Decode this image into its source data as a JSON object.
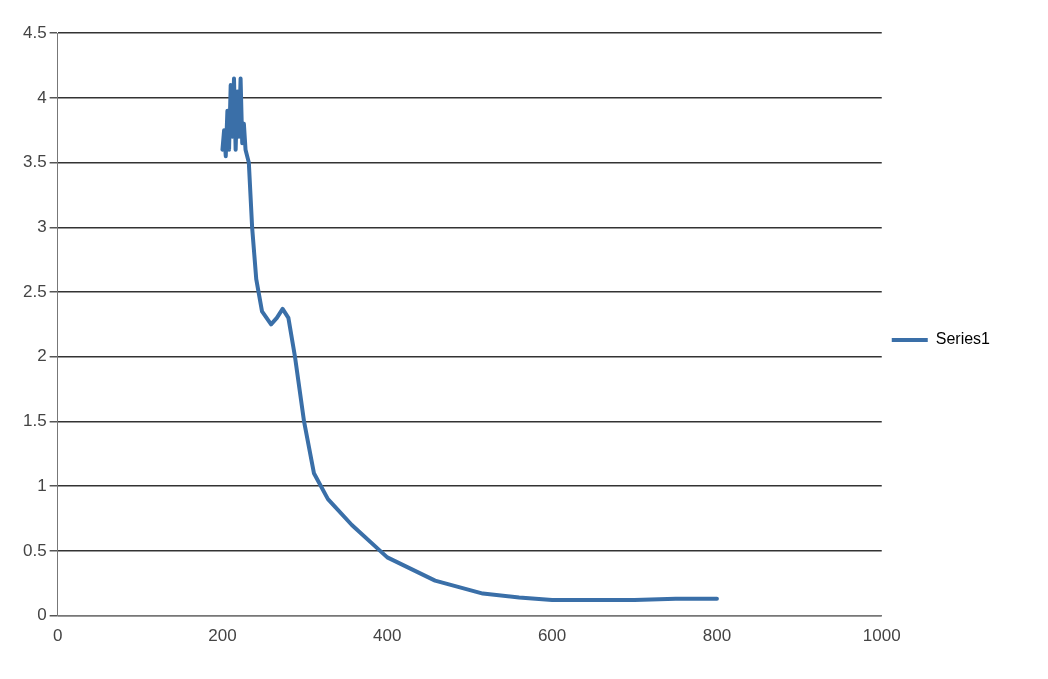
{
  "chart_data": {
    "type": "line",
    "xlim": [
      0,
      1000
    ],
    "xticks": [
      0,
      200,
      400,
      600,
      800,
      1000
    ],
    "ylim": [
      0,
      4.5
    ],
    "yticks": [
      0,
      0.5,
      1,
      1.5,
      2,
      2.5,
      3,
      3.5,
      4,
      4.5
    ],
    "grid": "y",
    "legend": "right",
    "marker": "none",
    "line_style": "solid",
    "series": [
      {
        "name": "Series1",
        "color": "#3a6fa8",
        "x": [
          200,
          202,
          204,
          206,
          208,
          210,
          212,
          214,
          216,
          218,
          220,
          222,
          224,
          226,
          228,
          232,
          236,
          241,
          248,
          259,
          266,
          273,
          280,
          288,
          299,
          311,
          328,
          357,
          400,
          458,
          516,
          560,
          600,
          650,
          700,
          750,
          800
        ],
        "values": [
          3.6,
          3.75,
          3.55,
          3.9,
          3.6,
          4.1,
          3.7,
          4.15,
          3.6,
          4.05,
          3.7,
          4.15,
          3.65,
          3.8,
          3.6,
          3.5,
          3.0,
          2.6,
          2.35,
          2.25,
          2.3,
          2.37,
          2.3,
          2.0,
          1.5,
          1.1,
          0.9,
          0.7,
          0.45,
          0.27,
          0.17,
          0.14,
          0.12,
          0.12,
          0.12,
          0.13,
          0.13
        ]
      }
    ]
  }
}
